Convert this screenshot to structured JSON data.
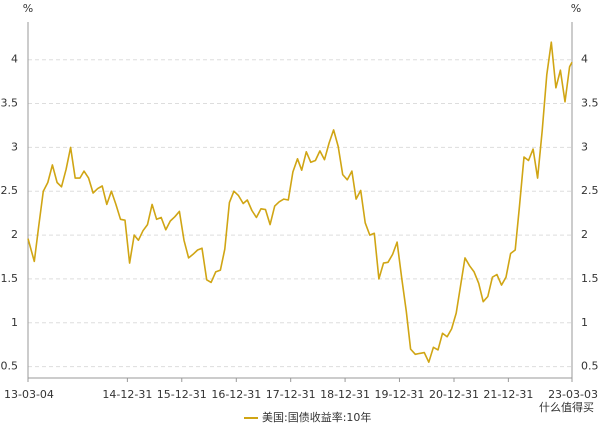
{
  "chart_data": {
    "type": "line",
    "y_unit": "%",
    "y2_unit": "%",
    "x": [
      "13-03-04",
      "13-04-15",
      "13-05-15",
      "13-06-15",
      "13-07-15",
      "13-08-15",
      "13-09-15",
      "13-10-15",
      "13-11-15",
      "13-12-15",
      "14-01-15",
      "14-02-15",
      "14-03-15",
      "14-04-15",
      "14-05-15",
      "14-06-15",
      "14-07-15",
      "14-08-15",
      "14-09-15",
      "14-10-15",
      "14-11-15",
      "14-12-15",
      "15-01-15",
      "15-02-15",
      "15-03-15",
      "15-04-15",
      "15-05-15",
      "15-06-15",
      "15-07-15",
      "15-08-15",
      "15-09-15",
      "15-10-15",
      "15-11-15",
      "15-12-15",
      "16-01-15",
      "16-02-15",
      "16-03-15",
      "16-04-15",
      "16-05-15",
      "16-06-15",
      "16-07-15",
      "16-08-15",
      "16-09-15",
      "16-10-15",
      "16-11-15",
      "16-12-15",
      "17-01-15",
      "17-02-15",
      "17-03-15",
      "17-04-15",
      "17-05-15",
      "17-06-15",
      "17-07-15",
      "17-08-15",
      "17-09-15",
      "17-10-15",
      "17-11-15",
      "17-12-15",
      "18-01-15",
      "18-02-15",
      "18-03-15",
      "18-04-15",
      "18-05-15",
      "18-06-15",
      "18-07-15",
      "18-08-15",
      "18-09-15",
      "18-10-15",
      "18-11-15",
      "18-12-15",
      "19-01-15",
      "19-02-15",
      "19-03-15",
      "19-04-15",
      "19-05-15",
      "19-06-15",
      "19-07-15",
      "19-08-15",
      "19-09-15",
      "19-10-15",
      "19-11-15",
      "19-12-15",
      "20-01-15",
      "20-02-15",
      "20-03-15",
      "20-04-15",
      "20-05-15",
      "20-06-15",
      "20-07-15",
      "20-08-15",
      "20-09-15",
      "20-10-15",
      "20-11-15",
      "20-12-15",
      "21-01-15",
      "21-02-15",
      "21-03-15",
      "21-04-15",
      "21-05-15",
      "21-06-15",
      "21-07-15",
      "21-08-15",
      "21-09-15",
      "21-10-15",
      "21-11-15",
      "21-12-15",
      "22-01-15",
      "22-02-15",
      "22-03-15",
      "22-04-15",
      "22-05-15",
      "22-06-15",
      "22-07-15",
      "22-08-15",
      "22-09-15",
      "22-10-15",
      "22-11-15",
      "22-12-15",
      "23-01-15",
      "23-02-15",
      "23-03-03"
    ],
    "series": [
      {
        "name": "美国:国债收益率:10年",
        "color": "#d0a514",
        "values": [
          1.96,
          1.7,
          2.1,
          2.5,
          2.6,
          2.8,
          2.6,
          2.55,
          2.75,
          3.0,
          2.65,
          2.65,
          2.73,
          2.65,
          2.48,
          2.53,
          2.56,
          2.35,
          2.5,
          2.35,
          2.18,
          2.17,
          1.68,
          2.0,
          1.94,
          2.05,
          2.12,
          2.35,
          2.18,
          2.2,
          2.06,
          2.16,
          2.21,
          2.27,
          1.94,
          1.74,
          1.78,
          1.83,
          1.85,
          1.49,
          1.46,
          1.58,
          1.6,
          1.84,
          2.37,
          2.5,
          2.45,
          2.36,
          2.4,
          2.28,
          2.2,
          2.3,
          2.29,
          2.12,
          2.33,
          2.38,
          2.41,
          2.4,
          2.72,
          2.87,
          2.74,
          2.95,
          2.83,
          2.85,
          2.96,
          2.86,
          3.05,
          3.2,
          3.01,
          2.69,
          2.63,
          2.73,
          2.41,
          2.51,
          2.14,
          2.0,
          2.02,
          1.5,
          1.68,
          1.69,
          1.78,
          1.92,
          1.51,
          1.13,
          0.7,
          0.64,
          0.65,
          0.66,
          0.55,
          0.72,
          0.69,
          0.88,
          0.84,
          0.93,
          1.11,
          1.44,
          1.74,
          1.65,
          1.58,
          1.45,
          1.24,
          1.3,
          1.52,
          1.55,
          1.43,
          1.52,
          1.79,
          1.83,
          2.32,
          2.89,
          2.85,
          2.98,
          2.65,
          3.19,
          3.83,
          4.2,
          3.68,
          3.88,
          3.52,
          3.92,
          3.97
        ]
      }
    ],
    "xlim": [
      "13-03-04",
      "23-03-03"
    ],
    "xticks": [
      "13-03-04",
      "14-12-31",
      "15-12-31",
      "16-12-31",
      "17-12-31",
      "18-12-31",
      "19-12-31",
      "20-12-31",
      "21-12-31",
      "23-03-03"
    ],
    "ylim": [
      0.37,
      4.43
    ],
    "yticks": [
      0.5,
      1,
      1.5,
      2,
      2.5,
      3,
      3.5,
      4
    ],
    "y2lim": [
      0.37,
      4.43
    ],
    "y2ticks": [
      0.5,
      1,
      1.5,
      2,
      2.5,
      3,
      3.5,
      4
    ],
    "grid": true,
    "legend": "bottom",
    "watermark": "什么值得买"
  }
}
